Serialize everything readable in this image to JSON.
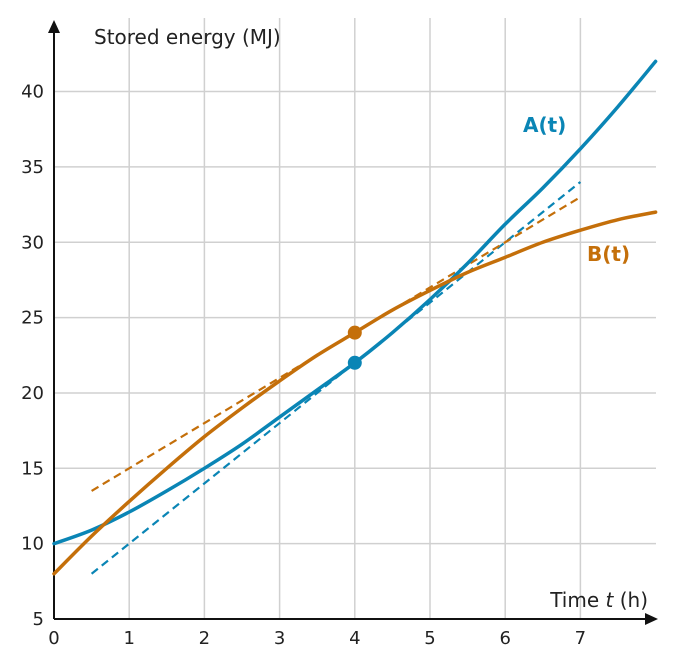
{
  "chart_data": {
    "type": "line",
    "xlabel_prefix": "Time ",
    "xlabel_var": "t",
    "xlabel_suffix": " (h)",
    "ylabel": "Stored energy (MJ)",
    "xlim": [
      0,
      8
    ],
    "ylim": [
      5,
      44
    ],
    "x_ticks": [
      0,
      1,
      2,
      3,
      4,
      5,
      6,
      7
    ],
    "y_ticks": [
      5,
      10,
      15,
      20,
      25,
      30,
      35,
      40
    ],
    "grid": true,
    "series": [
      {
        "name": "A(t)",
        "color": "#0a85b5",
        "x": [
          0,
          0.5,
          1,
          1.5,
          2,
          2.5,
          3,
          3.5,
          4,
          4.5,
          5,
          5.5,
          6,
          6.5,
          7,
          7.5,
          8
        ],
        "y": [
          10,
          10.9,
          12.1,
          13.5,
          15.0,
          16.6,
          18.4,
          20.2,
          22.0,
          24.0,
          26.2,
          28.6,
          31.2,
          33.6,
          36.2,
          39.0,
          42.0
        ],
        "marker": {
          "x": 4,
          "y": 22
        },
        "tangent": {
          "x": [
            0.5,
            7
          ],
          "y": [
            8.0,
            34.0
          ]
        }
      },
      {
        "name": "B(t)",
        "color": "#c46f0a",
        "x": [
          0,
          0.5,
          1,
          1.5,
          2,
          2.5,
          3,
          3.5,
          4,
          4.5,
          5,
          5.5,
          6,
          6.5,
          7,
          7.5,
          8
        ],
        "y": [
          8.0,
          10.5,
          12.8,
          15.0,
          17.1,
          19.0,
          20.8,
          22.5,
          24.0,
          25.5,
          26.8,
          28.0,
          29.0,
          30.0,
          30.8,
          31.5,
          32.0
        ],
        "marker": {
          "x": 4,
          "y": 24
        },
        "tangent": {
          "x": [
            0.5,
            7
          ],
          "y": [
            13.5,
            33.0
          ]
        }
      }
    ]
  }
}
